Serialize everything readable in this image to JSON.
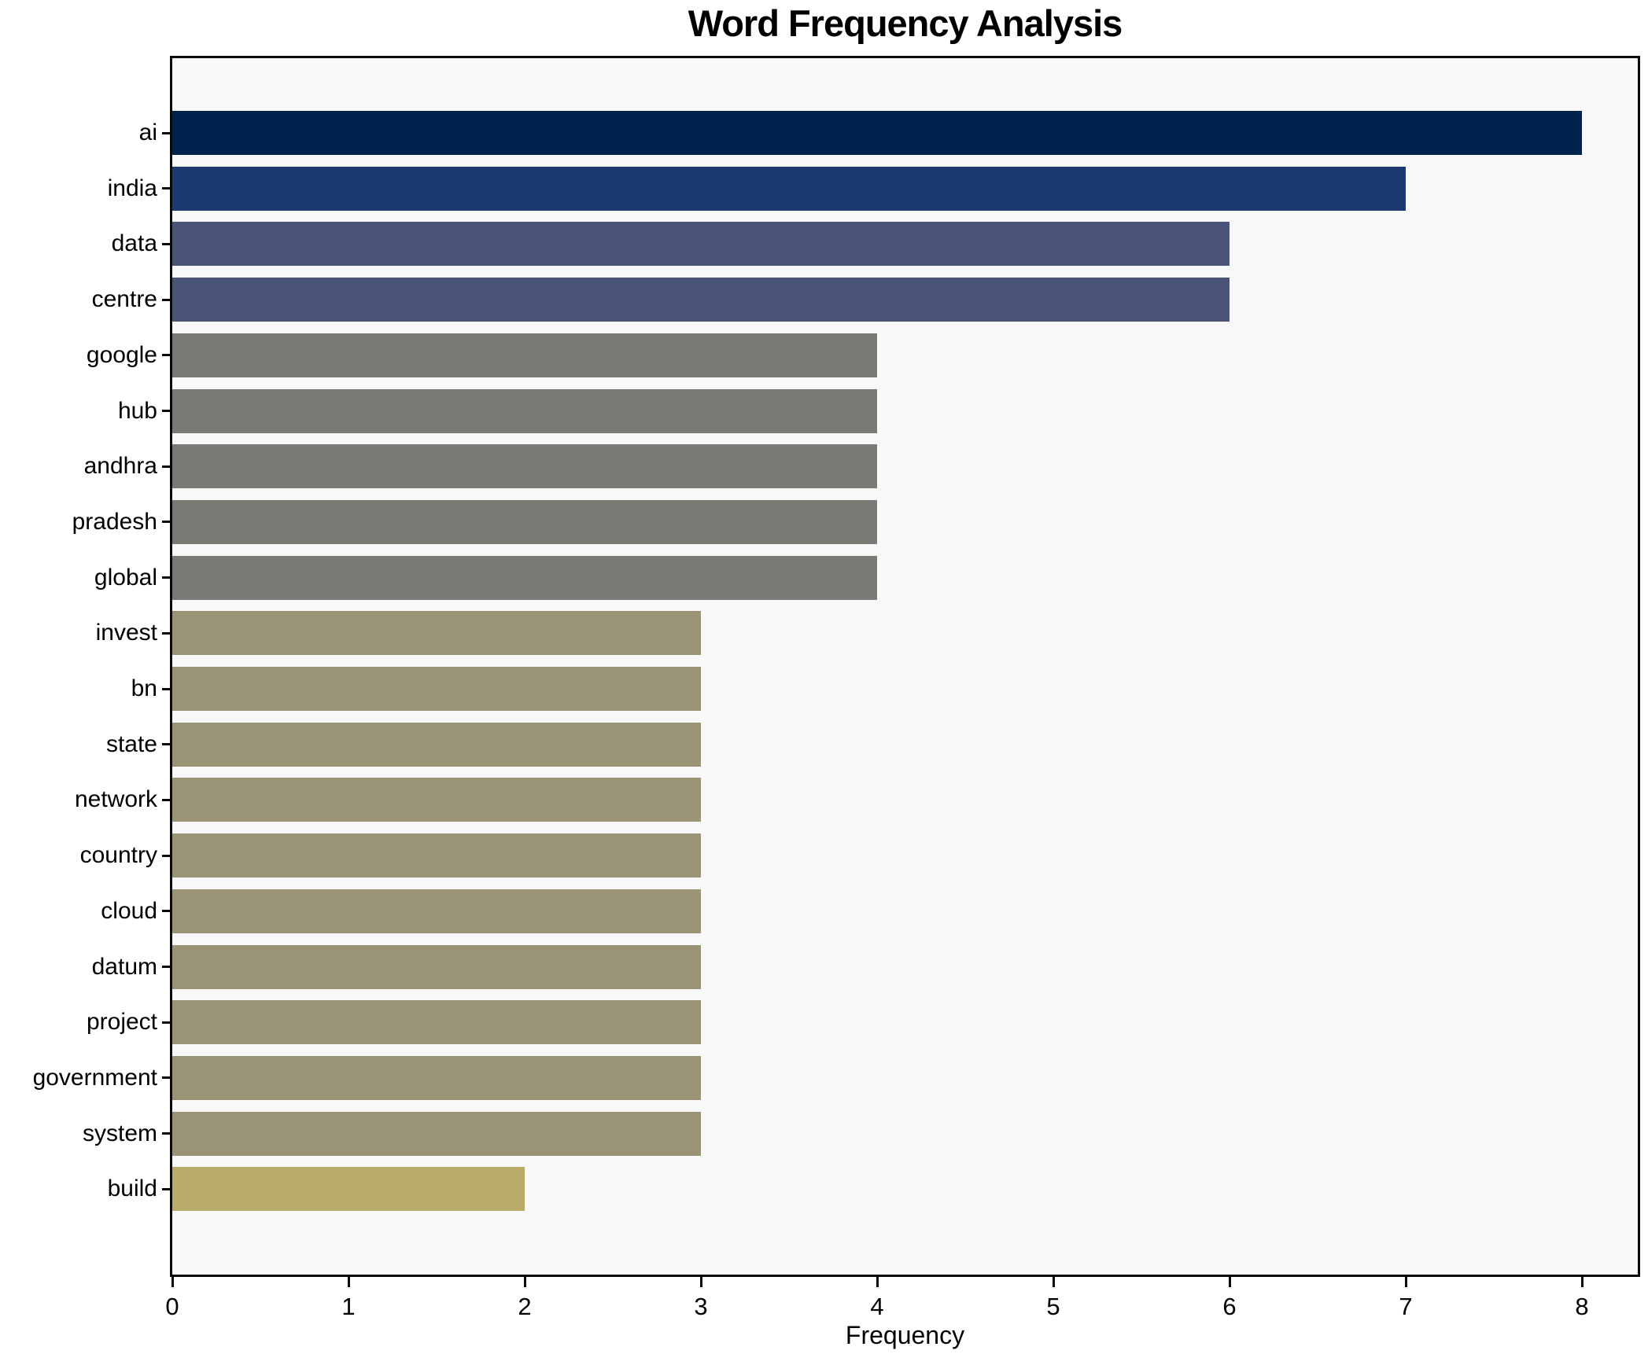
{
  "chart_data": {
    "type": "bar",
    "orientation": "horizontal",
    "title": "Word Frequency Analysis",
    "xlabel": "Frequency",
    "ylabel": "",
    "categories": [
      "ai",
      "india",
      "data",
      "centre",
      "google",
      "hub",
      "andhra",
      "pradesh",
      "global",
      "invest",
      "bn",
      "state",
      "network",
      "country",
      "cloud",
      "datum",
      "project",
      "government",
      "system",
      "build"
    ],
    "values": [
      8,
      7,
      6,
      6,
      4,
      4,
      4,
      4,
      4,
      3,
      3,
      3,
      3,
      3,
      3,
      3,
      3,
      3,
      3,
      2
    ],
    "bar_colors": [
      "#00224e",
      "#1c3a70",
      "#4a5478",
      "#4a5478",
      "#7a7a75",
      "#7a7a75",
      "#7a7a75",
      "#7a7a75",
      "#7a7a75",
      "#9a9376",
      "#9a9376",
      "#9a9376",
      "#9a9376",
      "#9a9376",
      "#9a9376",
      "#9a9376",
      "#9a9376",
      "#9a9376",
      "#9a9376",
      "#b9ac6a"
    ],
    "x_ticks": [
      0,
      1,
      2,
      3,
      4,
      5,
      6,
      7,
      8
    ],
    "xlim": [
      0,
      8.32
    ],
    "grid": false,
    "legend": null,
    "plot_background": "#f8f8f8",
    "figure_background": "#ffffff",
    "colormap": "cividis"
  }
}
